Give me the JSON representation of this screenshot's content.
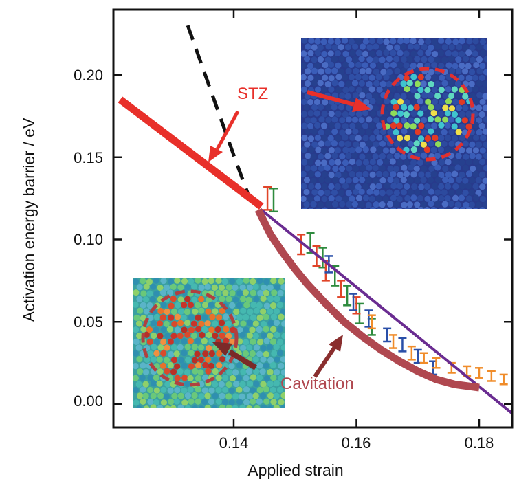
{
  "chart_data": {
    "type": "line",
    "xlabel": "Applied strain",
    "ylabel": "Activation energy barrier / eV",
    "xlim": [
      0.1215,
      0.1855
    ],
    "ylim": [
      -0.015,
      0.24
    ],
    "x_ticks": [
      0.14,
      0.16,
      0.18
    ],
    "x_tick_labels": [
      "0.14",
      "0.16",
      "0.18"
    ],
    "y_ticks": [
      0.0,
      0.05,
      0.1,
      0.15,
      0.2
    ],
    "y_tick_labels": [
      "0.00",
      "0.05",
      "0.10",
      "0.15",
      "0.20"
    ],
    "grid": false,
    "series": [
      {
        "style": "solid-thick",
        "color": "#e8302a",
        "x": [
          0.1215,
          0.1445
        ],
        "y": [
          0.185,
          0.12
        ]
      },
      {
        "style": "dashed",
        "color": "#111111",
        "x": [
          0.1325,
          0.1345,
          0.1365,
          0.1385,
          0.1405,
          0.1425
        ],
        "y": [
          0.23,
          0.209,
          0.188,
          0.167,
          0.146,
          0.126
        ]
      },
      {
        "style": "solid",
        "color": "#6a2c91",
        "x": [
          0.1445,
          0.1855
        ],
        "y": [
          0.118,
          -0.006
        ]
      },
      {
        "style": "solid-thick",
        "color": "#b04850",
        "x": [
          0.144,
          0.146,
          0.148,
          0.15,
          0.152,
          0.155,
          0.158,
          0.161,
          0.164,
          0.167,
          0.17,
          0.173,
          0.176,
          0.178,
          0.18
        ],
        "y": [
          0.118,
          0.103,
          0.092,
          0.082,
          0.073,
          0.061,
          0.05,
          0.041,
          0.033,
          0.026,
          0.02,
          0.015,
          0.012,
          0.011,
          0.01
        ]
      }
    ],
    "error_bars": [
      {
        "color": "#2e8b3e",
        "x": [
          0.1465,
          0.1525,
          0.1545,
          0.1565,
          0.1585,
          0.1605,
          0.1625
        ],
        "y": [
          0.124,
          0.098,
          0.089,
          0.078,
          0.066,
          0.055,
          0.047
        ],
        "err": [
          0.007,
          0.006,
          0.006,
          0.006,
          0.006,
          0.006,
          0.005
        ]
      },
      {
        "color": "#e04428",
        "x": [
          0.1455,
          0.151,
          0.1535,
          0.155,
          0.1575,
          0.16
        ],
        "y": [
          0.125,
          0.097,
          0.09,
          0.081,
          0.07,
          0.06
        ],
        "err": [
          0.007,
          0.006,
          0.006,
          0.006,
          0.005,
          0.005
        ]
      },
      {
        "color": "#2a4fa8",
        "x": [
          0.1555,
          0.1595,
          0.162,
          0.165,
          0.1675,
          0.17,
          0.1725
        ],
        "y": [
          0.085,
          0.062,
          0.052,
          0.042,
          0.036,
          0.029,
          0.022
        ],
        "err": [
          0.005,
          0.005,
          0.005,
          0.004,
          0.004,
          0.004,
          0.004
        ]
      },
      {
        "color": "#f08c2a",
        "x": [
          0.1625,
          0.166,
          0.169,
          0.171,
          0.173,
          0.1755,
          0.178,
          0.18,
          0.182,
          0.184
        ],
        "y": [
          0.05,
          0.038,
          0.031,
          0.028,
          0.025,
          0.022,
          0.02,
          0.019,
          0.017,
          0.015
        ],
        "err": [
          0.004,
          0.004,
          0.004,
          0.003,
          0.003,
          0.003,
          0.003,
          0.003,
          0.003,
          0.003
        ]
      }
    ],
    "annotations": [
      {
        "text": "STZ",
        "color": "#e8302a"
      },
      {
        "text": "Cavitation",
        "color": "#b04850"
      }
    ],
    "insets": [
      {
        "name": "stz-inset",
        "palette": "blue-cyan-green-red"
      },
      {
        "name": "cavitation-inset",
        "palette": "green-cyan-orange-red"
      }
    ]
  }
}
